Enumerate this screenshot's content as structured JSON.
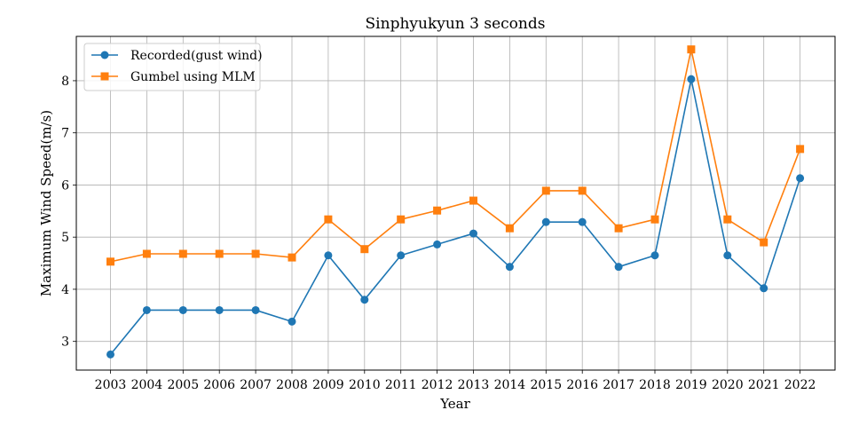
{
  "chart_data": {
    "type": "line",
    "title": "Sinphyukyun 3 seconds",
    "xlabel": "Year",
    "ylabel": "Maximum Wind Speed(m/s)",
    "x": [
      "2003",
      "2004",
      "2005",
      "2006",
      "2007",
      "2008",
      "2009",
      "2010",
      "2011",
      "2012",
      "2013",
      "2014",
      "2015",
      "2016",
      "2017",
      "2018",
      "2019",
      "2020",
      "2021",
      "2022"
    ],
    "ylim": [
      2.45,
      8.85
    ],
    "yticks": [
      3,
      4,
      5,
      6,
      7,
      8
    ],
    "grid": true,
    "legend_position": "top-left",
    "series": [
      {
        "name": "Recorded(gust wind)",
        "color": "#1f77b4",
        "marker": "circle",
        "values": [
          2.75,
          3.6,
          3.6,
          3.6,
          3.6,
          3.38,
          4.65,
          3.8,
          4.65,
          4.86,
          5.07,
          4.43,
          5.29,
          5.29,
          4.43,
          4.65,
          8.03,
          4.65,
          4.02,
          6.13
        ]
      },
      {
        "name": "Gumbel using MLM",
        "color": "#ff7f0e",
        "marker": "square",
        "values": [
          4.53,
          4.68,
          4.68,
          4.68,
          4.68,
          4.61,
          5.34,
          4.77,
          5.34,
          5.51,
          5.7,
          5.17,
          5.89,
          5.89,
          5.17,
          5.34,
          8.6,
          5.34,
          4.9,
          6.69
        ]
      }
    ]
  }
}
